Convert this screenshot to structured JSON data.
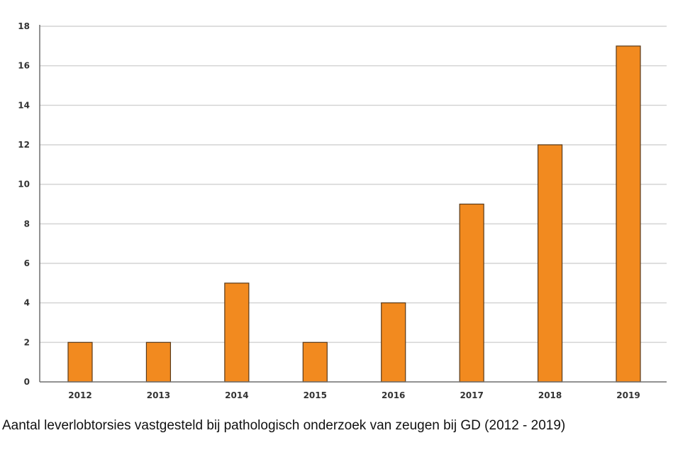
{
  "caption": "Aantal leverlobtorsies vastgesteld bij pathologisch onderzoek van zeugen bij GD (2012 - 2019)",
  "chart_data": {
    "type": "bar",
    "categories": [
      "2012",
      "2013",
      "2014",
      "2015",
      "2016",
      "2017",
      "2018",
      "2019"
    ],
    "values": [
      2,
      2,
      5,
      2,
      4,
      9,
      12,
      17
    ],
    "title": "",
    "xlabel": "",
    "ylabel": "",
    "ylim": [
      0,
      18
    ],
    "yticks": [
      0,
      2,
      4,
      6,
      8,
      10,
      12,
      14,
      16,
      18
    ],
    "grid": true,
    "bar_color": "#f28a1f",
    "bar_edge_color": "#5a3a1a",
    "grid_color": "#d4d4d4",
    "axis_color": "#6e6e6e"
  }
}
